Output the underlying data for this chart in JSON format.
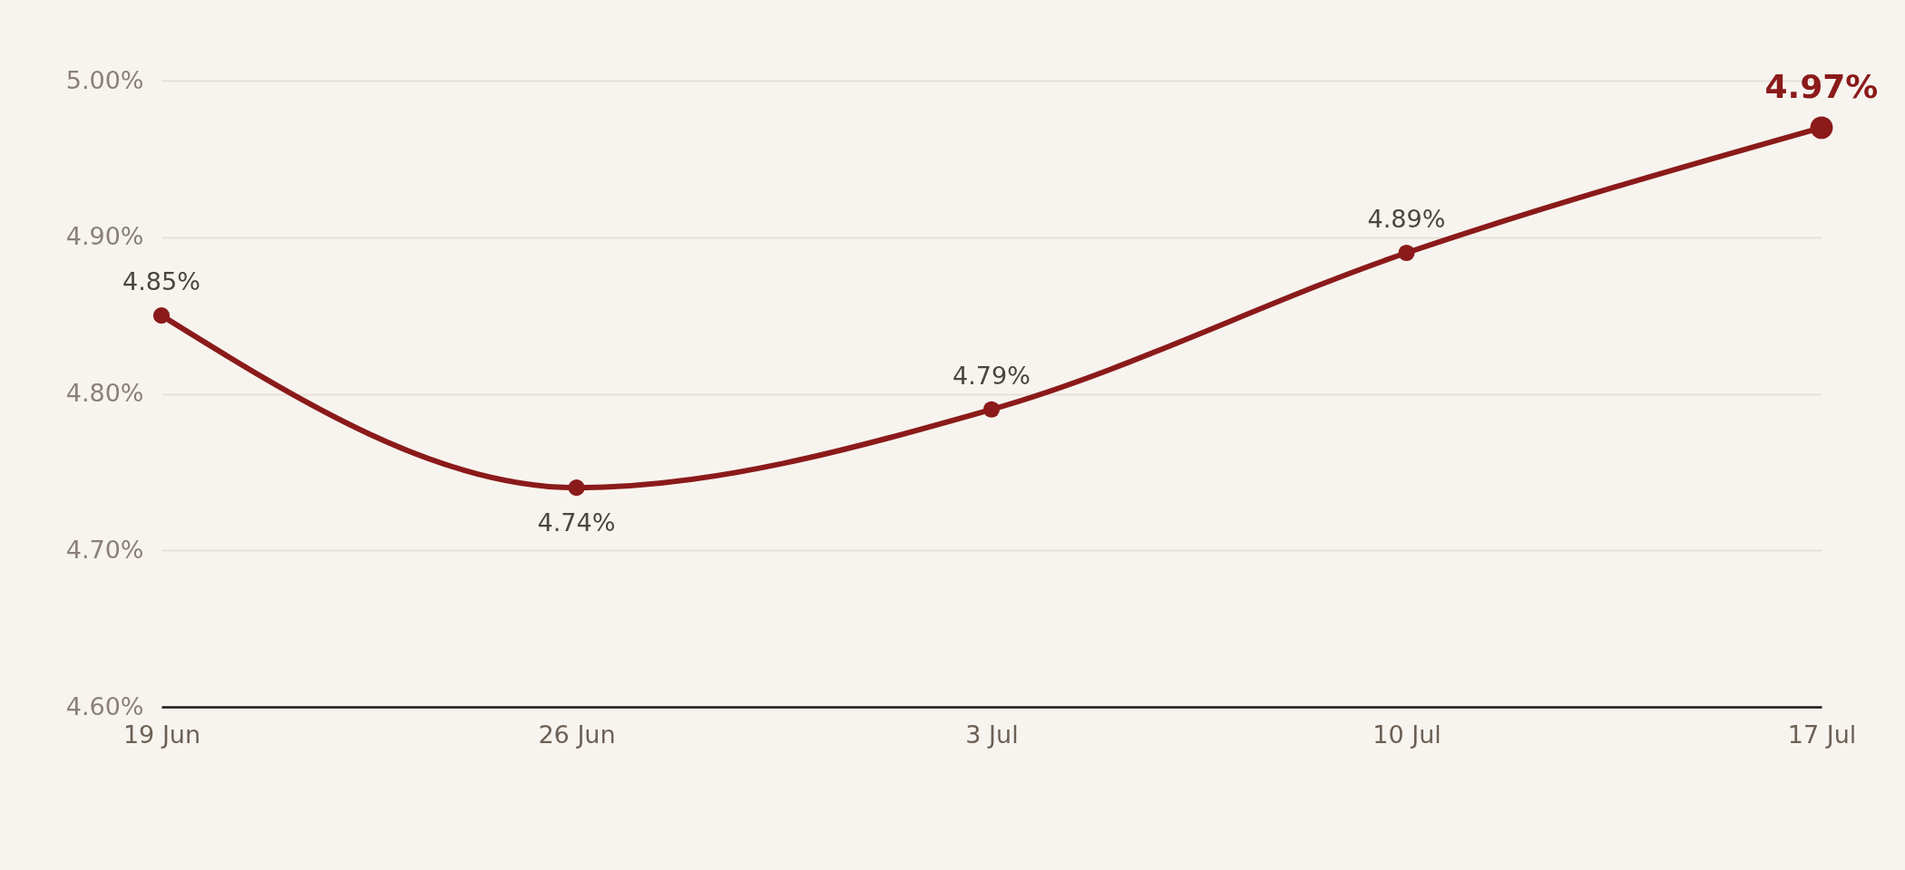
{
  "chart_data": {
    "type": "line",
    "categories": [
      "19 Jun",
      "26 Jun",
      "3 Jul",
      "10 Jul",
      "17 Jul"
    ],
    "series": [
      {
        "color": "#8b1a1a",
        "values": [
          4.85,
          4.74,
          4.79,
          4.89,
          4.97
        ],
        "value_labels": [
          "4.85%",
          "4.74%",
          "4.79%",
          "4.89%",
          "4.97%"
        ]
      }
    ],
    "ylim": [
      4.6,
      5.0
    ],
    "yticks": [
      {
        "value": 4.6,
        "label": "4.60%"
      },
      {
        "value": 4.7,
        "label": "4.70%"
      },
      {
        "value": 4.8,
        "label": "4.80%"
      },
      {
        "value": 4.9,
        "label": "4.90%"
      },
      {
        "value": 5.0,
        "label": "5.00%"
      }
    ],
    "grid": "y",
    "marker": "circle",
    "line_style": "solid",
    "legend": false
  }
}
